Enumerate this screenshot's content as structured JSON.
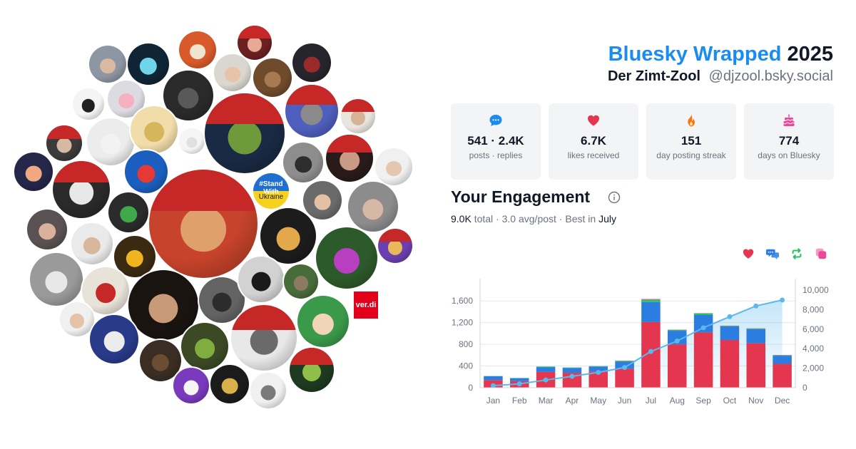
{
  "header": {
    "brand": "Bluesky Wrapped",
    "year": "2025",
    "display_name": "Der Zimt-Zool",
    "handle": "@djzool.bsky.social"
  },
  "collage": {
    "badge_ukraine_top": "#Stand With",
    "badge_ukraine_bottom": "Ukraine",
    "verdi_logo_text": "ver.di"
  },
  "stats": [
    {
      "icon": "chat-bubble-icon",
      "value": "541 · 2.4K",
      "label": "posts · replies",
      "color": "#1a8cf0"
    },
    {
      "icon": "heart-icon",
      "value": "6.7K",
      "label": "likes received",
      "color": "#e5364f"
    },
    {
      "icon": "flame-icon",
      "value": "151",
      "label": "day posting streak",
      "color": "#f97316"
    },
    {
      "icon": "cake-icon",
      "value": "774",
      "label": "days on Bluesky",
      "color": "#ec4899"
    }
  ],
  "engagement": {
    "title": "Your Engagement",
    "total": "9.0K",
    "total_word": "total",
    "sep1": "·",
    "avg": "3.0 avg/post",
    "sep2": "·",
    "best_prefix": "Best in",
    "best_month": "July",
    "legend": [
      {
        "icon": "heart-icon",
        "color": "#e5364f"
      },
      {
        "icon": "reply-icon",
        "color": "#2b7de0"
      },
      {
        "icon": "repost-icon",
        "color": "#22c55e"
      },
      {
        "icon": "quote-icon",
        "color": "#ec4899"
      }
    ]
  },
  "chart_data": {
    "type": "bar",
    "categories": [
      "Jan",
      "Feb",
      "Mar",
      "Apr",
      "May",
      "Jun",
      "Jul",
      "Aug",
      "Sep",
      "Oct",
      "Nov",
      "Dec"
    ],
    "series": [
      {
        "values": [
          140,
          120,
          290,
          275,
          300,
          350,
          1210,
          800,
          1020,
          880,
          820,
          440
        ],
        "color": "#e5364f"
      },
      {
        "values": [
          70,
          55,
          90,
          90,
          90,
          130,
          370,
          250,
          320,
          250,
          260,
          150
        ],
        "color": "#2b7de0"
      },
      {
        "values": [
          5,
          5,
          10,
          8,
          8,
          15,
          40,
          15,
          30,
          10,
          10,
          8
        ],
        "color": "#22c55e"
      },
      {
        "values": [
          0,
          0,
          0,
          0,
          0,
          5,
          15,
          5,
          5,
          5,
          5,
          5
        ],
        "color": "#ec4899"
      }
    ],
    "cumulative": [
      210,
      390,
      790,
      1170,
      1570,
      2070,
      3710,
      4780,
      6140,
      7270,
      8370,
      8980
    ],
    "ylim": [
      0,
      1800
    ],
    "yticks": [
      0,
      400,
      800,
      1200,
      1600
    ],
    "yticks_labels": [
      "0",
      "400",
      "800",
      "1,200",
      "1,600"
    ],
    "y2lim": [
      0,
      10000
    ],
    "y2ticks": [
      0,
      2000,
      4000,
      6000,
      8000,
      10000
    ],
    "y2ticks_labels": [
      "0",
      "2,000",
      "4,000",
      "6,000",
      "8,000",
      "10,000"
    ],
    "grid": true,
    "line_color": "#5bb8ef"
  }
}
